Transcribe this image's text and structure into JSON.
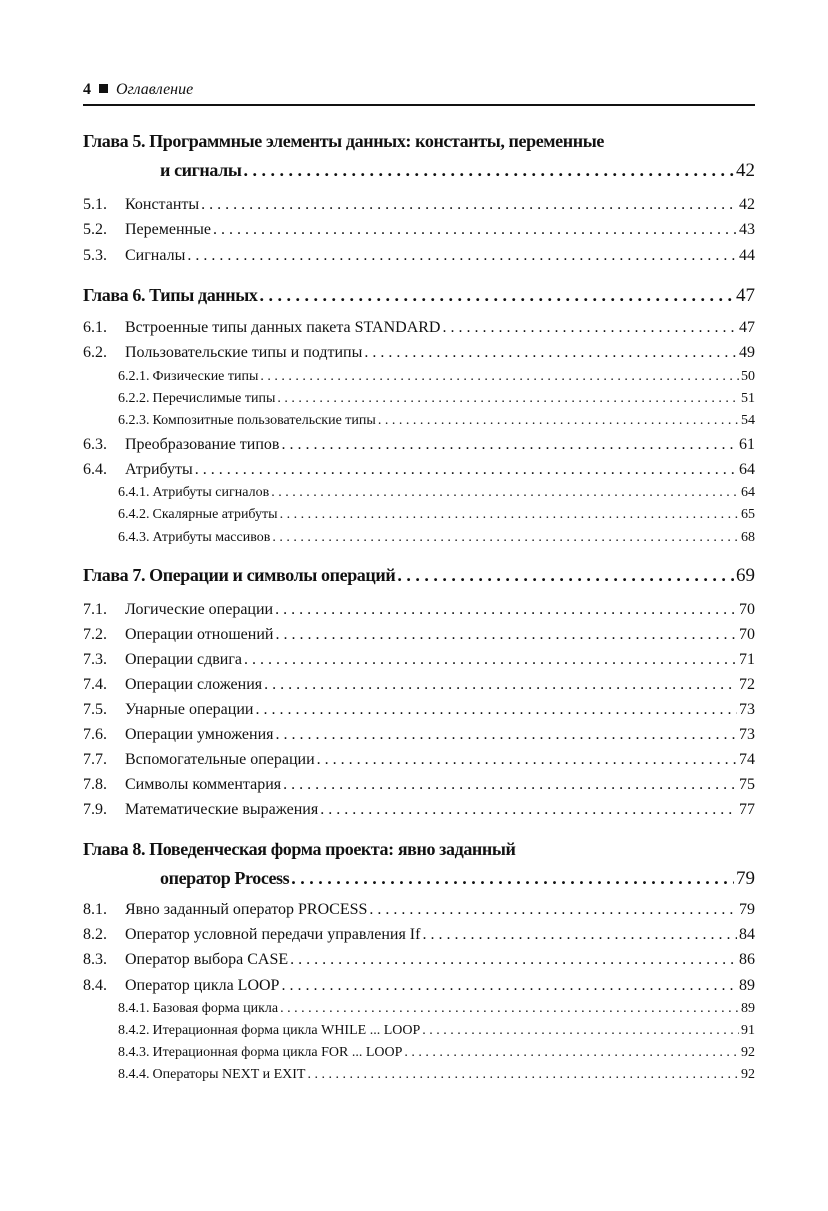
{
  "header": {
    "page_number": "4",
    "title": "Оглавление"
  },
  "entries": [
    {
      "type": "chapter",
      "line1": "Глава 5. Программные элементы данных: константы, переменные",
      "title": "и сигналы",
      "page": "42"
    },
    {
      "type": "section",
      "num": "5.1.",
      "title": "Константы",
      "page": "42"
    },
    {
      "type": "section",
      "num": "5.2.",
      "title": "Переменные",
      "page": "43"
    },
    {
      "type": "section",
      "num": "5.3.",
      "title": "Сигналы",
      "page": "44"
    },
    {
      "type": "chapter",
      "title": "Глава 6. Типы данных",
      "page": "47"
    },
    {
      "type": "section",
      "num": "6.1.",
      "title": "Встроенные типы данных пакета STANDARD",
      "page": "47"
    },
    {
      "type": "section",
      "num": "6.2.",
      "title": "Пользовательские типы и подтипы",
      "page": "49"
    },
    {
      "type": "sub",
      "num": "6.2.1.",
      "title": "Физические типы",
      "page": "50"
    },
    {
      "type": "sub",
      "num": "6.2.2.",
      "title": "Перечислимые типы",
      "page": "51"
    },
    {
      "type": "sub",
      "num": "6.2.3.",
      "title": "Композитные пользовательские типы",
      "page": "54"
    },
    {
      "type": "section",
      "num": "6.3.",
      "title": "Преобразование типов",
      "page": "61"
    },
    {
      "type": "section",
      "num": "6.4.",
      "title": "Атрибуты",
      "page": "64"
    },
    {
      "type": "sub",
      "num": "6.4.1.",
      "title": "Атрибуты сигналов",
      "page": "64"
    },
    {
      "type": "sub",
      "num": "6.4.2.",
      "title": "Скалярные атрибуты",
      "page": "65"
    },
    {
      "type": "sub",
      "num": "6.4.3.",
      "title": "Атрибуты массивов",
      "page": "68"
    },
    {
      "type": "chapter",
      "title": "Глава 7. Операции и символы операций",
      "page": "69"
    },
    {
      "type": "section",
      "num": "7.1.",
      "title": "Логические операции",
      "page": "70"
    },
    {
      "type": "section",
      "num": "7.2.",
      "title": "Операции отношений",
      "page": "70"
    },
    {
      "type": "section",
      "num": "7.3.",
      "title": "Операции сдвига",
      "page": "71"
    },
    {
      "type": "section",
      "num": "7.4.",
      "title": "Операции сложения",
      "page": "72"
    },
    {
      "type": "section",
      "num": "7.5.",
      "title": "Унарные операции",
      "page": "73"
    },
    {
      "type": "section",
      "num": "7.6.",
      "title": "Операции умножения",
      "page": "73"
    },
    {
      "type": "section",
      "num": "7.7.",
      "title": "Вспомогательные операции",
      "page": "74"
    },
    {
      "type": "section",
      "num": "7.8.",
      "title": "Символы комментария",
      "page": "75"
    },
    {
      "type": "section",
      "num": "7.9.",
      "title": "Математические выражения",
      "page": "77"
    },
    {
      "type": "chapter",
      "line1": "Глава 8. Поведенческая форма проекта: явно заданный",
      "title": "оператор Process",
      "page": "79"
    },
    {
      "type": "section",
      "num": "8.1.",
      "title": "Явно заданный оператор PROCESS",
      "page": "79"
    },
    {
      "type": "section",
      "num": "8.2.",
      "title": "Оператор условной передачи управления If",
      "page": "84"
    },
    {
      "type": "section",
      "num": "8.3.",
      "title": "Оператор выбора CASE",
      "page": "86"
    },
    {
      "type": "section",
      "num": "8.4.",
      "title": "Оператор цикла LOOP",
      "page": "89"
    },
    {
      "type": "sub",
      "num": "8.4.1.",
      "title": "Базовая форма цикла",
      "page": "89"
    },
    {
      "type": "sub",
      "num": "8.4.2.",
      "title": "Итерационная форма цикла WHILE ... LOOP",
      "page": "91"
    },
    {
      "type": "sub",
      "num": "8.4.3.",
      "title": "Итерационная форма цикла FOR ... LOOP",
      "page": "92"
    },
    {
      "type": "sub",
      "num": "8.4.4.",
      "title": "Операторы NEXT и EXIT",
      "page": "92"
    }
  ]
}
